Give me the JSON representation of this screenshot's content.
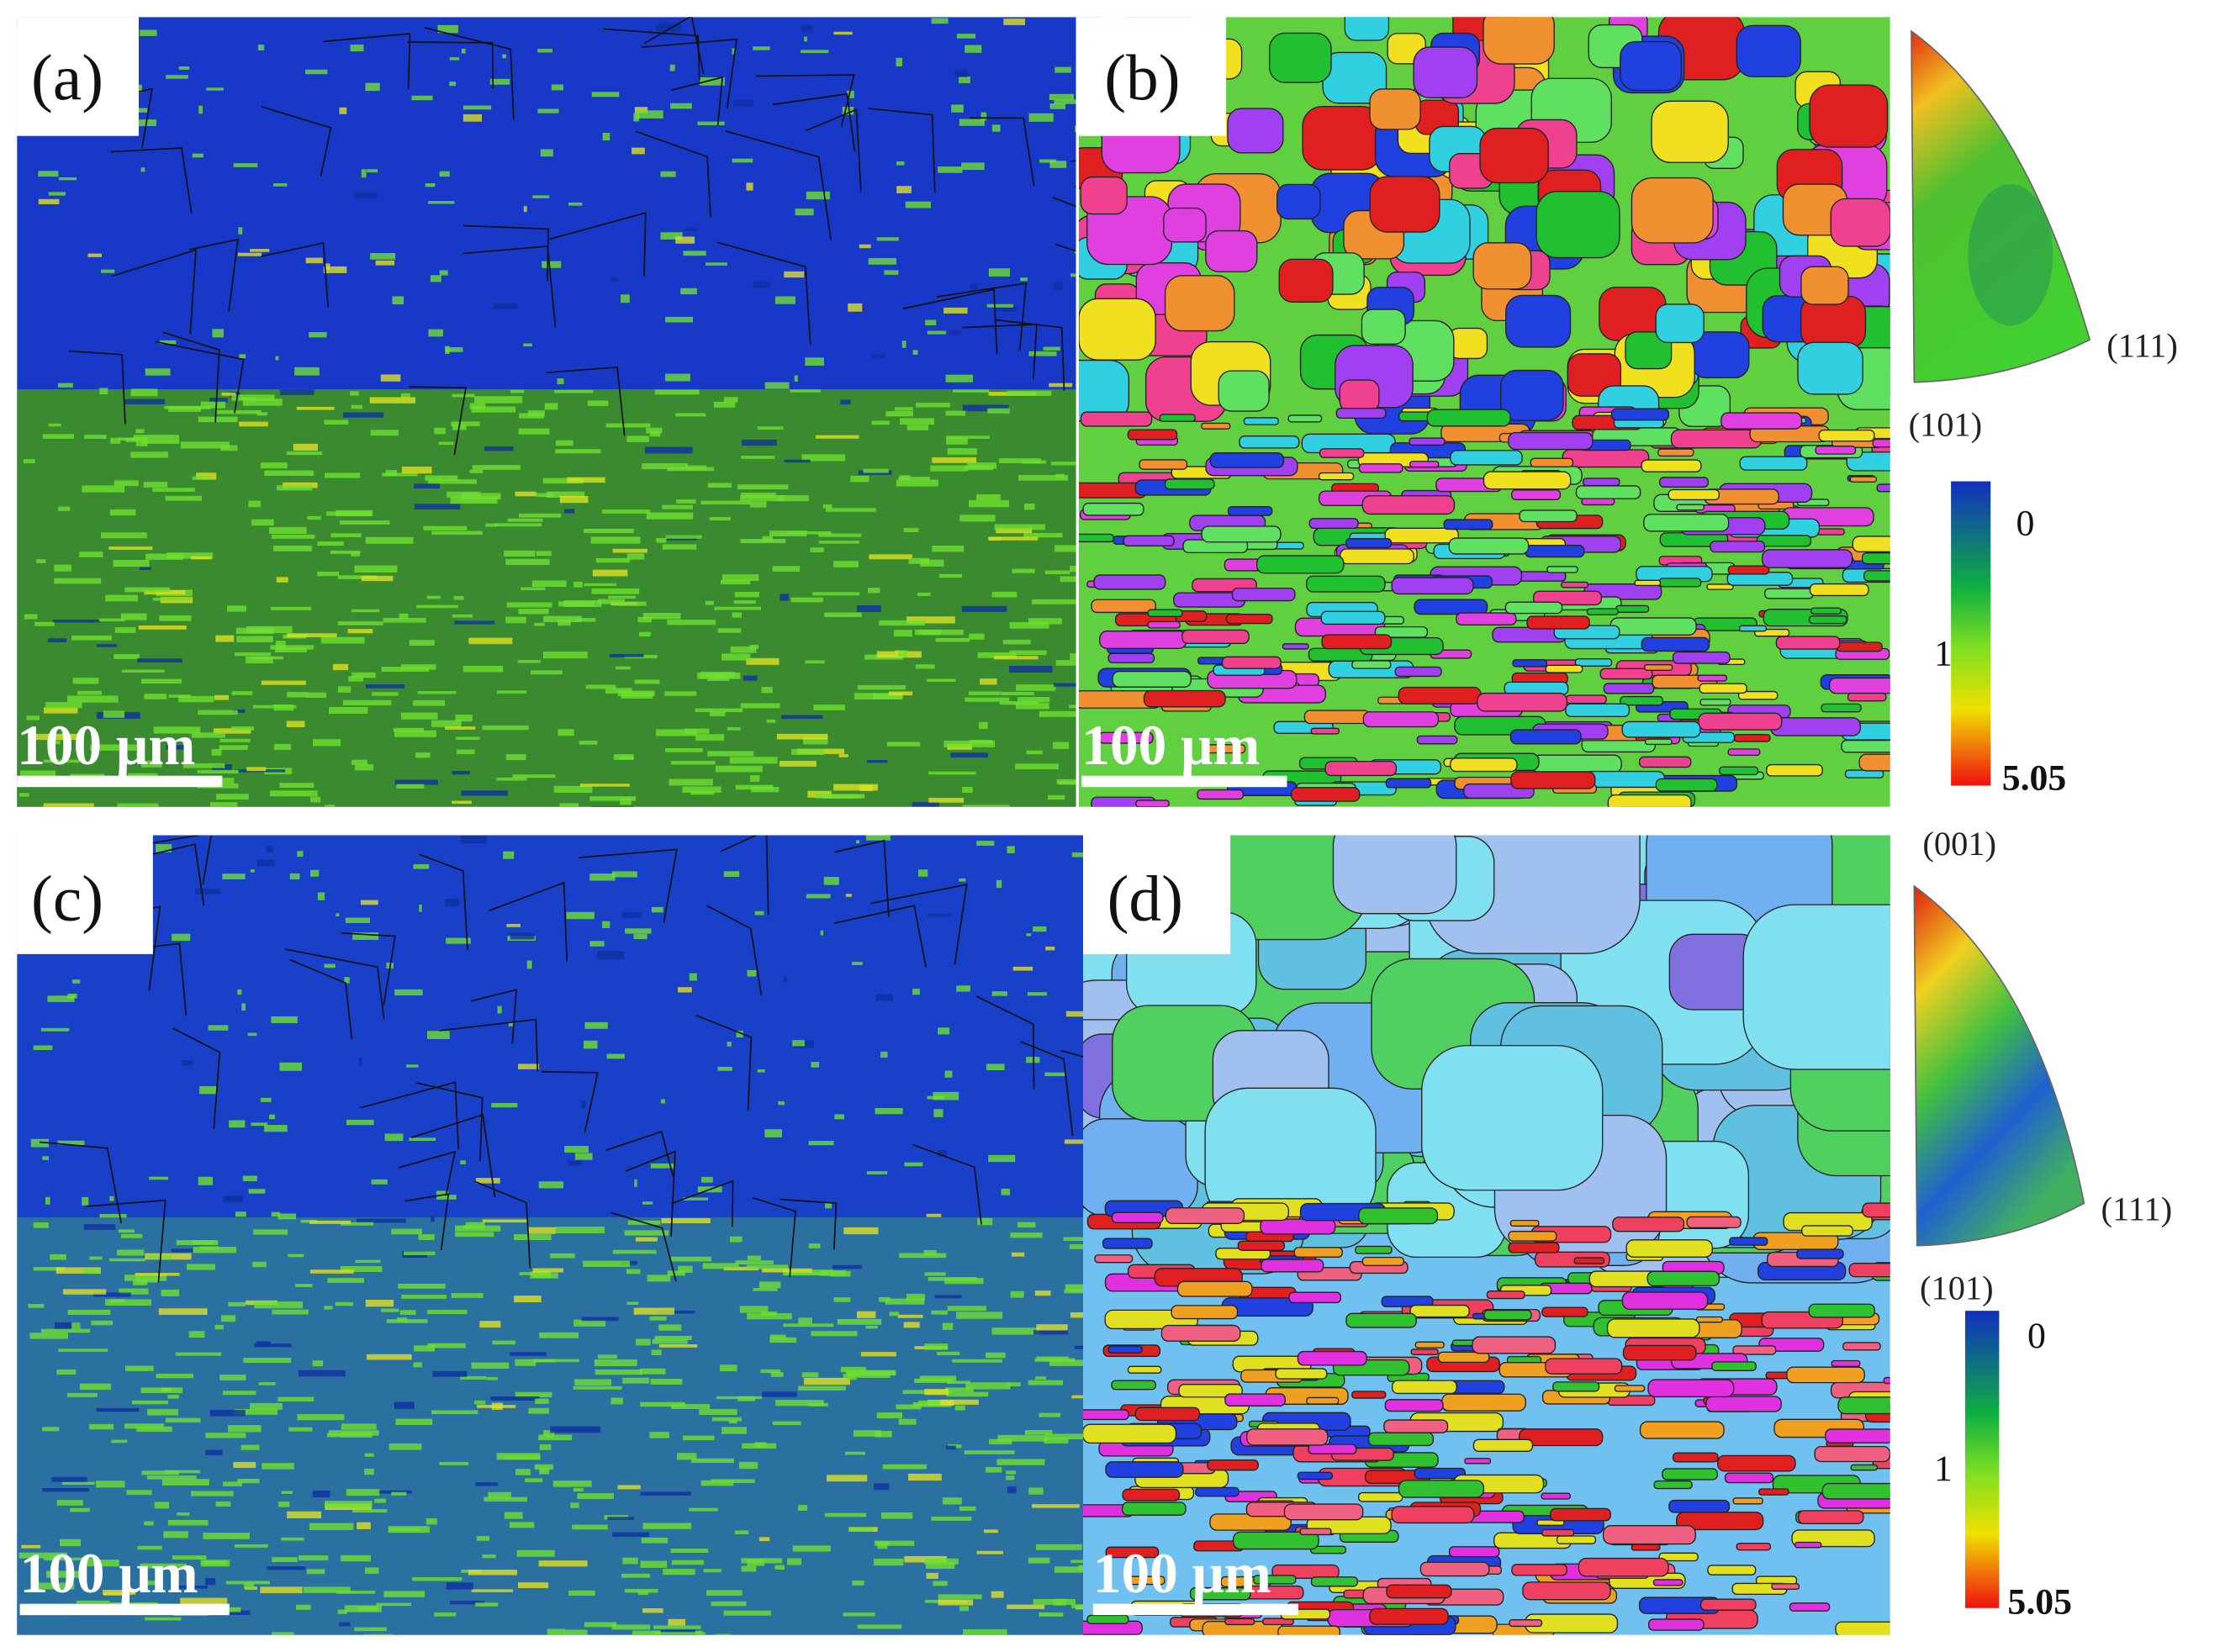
{
  "panels": [
    {
      "label": "(a)",
      "scale_bar": "100 μm"
    },
    {
      "label": "(b)",
      "scale_bar": "100 μm"
    },
    {
      "label": "(c)",
      "scale_bar": "100 μm"
    },
    {
      "label": "(d)",
      "scale_bar": "100 μm"
    }
  ],
  "legends": [
    {
      "ipf_right": "(111)",
      "ipf_bottom": "(101)",
      "colorbar_ticks": [
        0,
        1,
        5.05
      ]
    },
    {
      "ipf_top": "(001)",
      "ipf_right": "(111)",
      "ipf_bottom": "(101)",
      "colorbar_ticks": [
        0,
        1,
        5.05
      ]
    }
  ]
}
